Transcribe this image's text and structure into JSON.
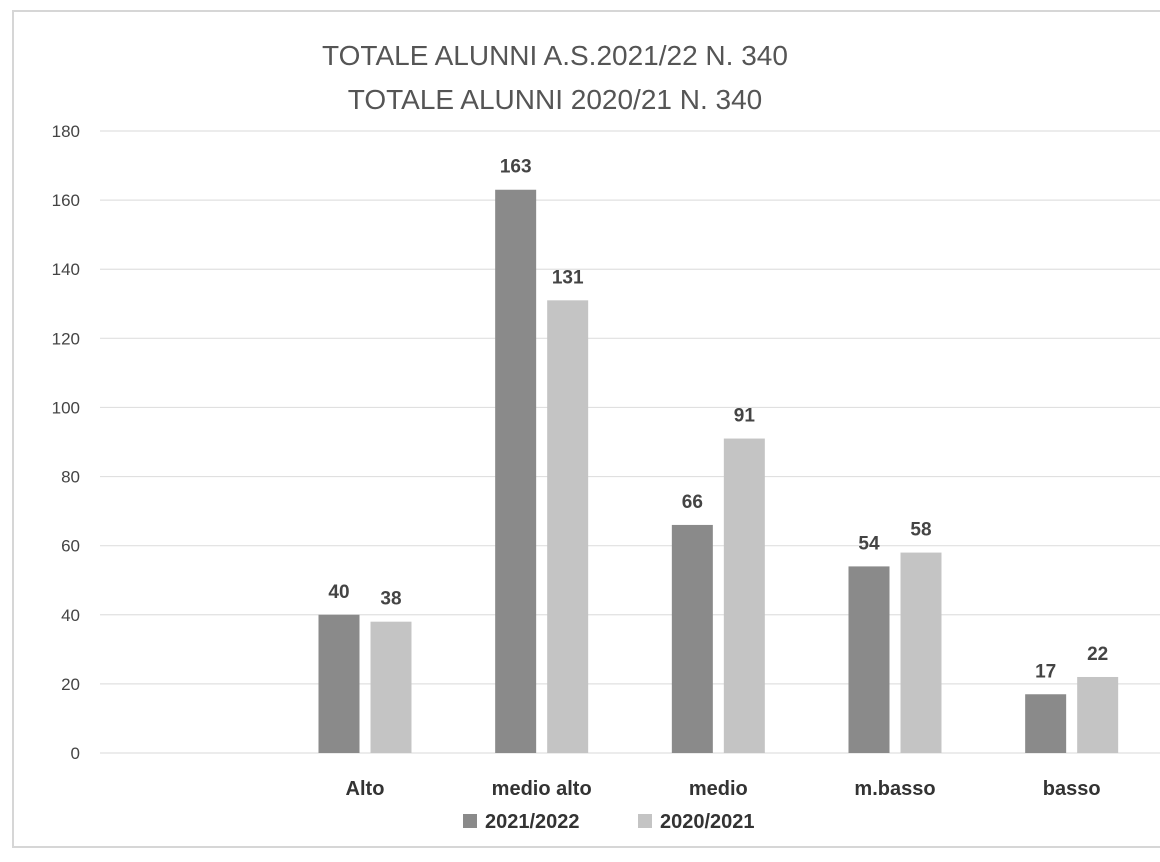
{
  "chart_data": {
    "type": "bar",
    "title_lines": [
      "TOTALE ALUNNI A.S.2021/22 N. 340",
      "TOTALE ALUNNI 2020/21 N. 340"
    ],
    "categories": [
      "",
      "Alto",
      "medio alto",
      "medio",
      "m.basso",
      "basso"
    ],
    "series": [
      {
        "name": "2021/2022",
        "values": [
          null,
          40,
          163,
          66,
          54,
          17
        ],
        "color": "#8a8a8a"
      },
      {
        "name": "2020/2021",
        "values": [
          null,
          38,
          131,
          91,
          58,
          22
        ],
        "color": "#c4c4c4"
      }
    ],
    "ylim": [
      0,
      180
    ],
    "yticks": [
      0,
      20,
      40,
      60,
      80,
      100,
      120,
      140,
      160,
      180
    ],
    "grid": true,
    "legend": "bottom"
  }
}
